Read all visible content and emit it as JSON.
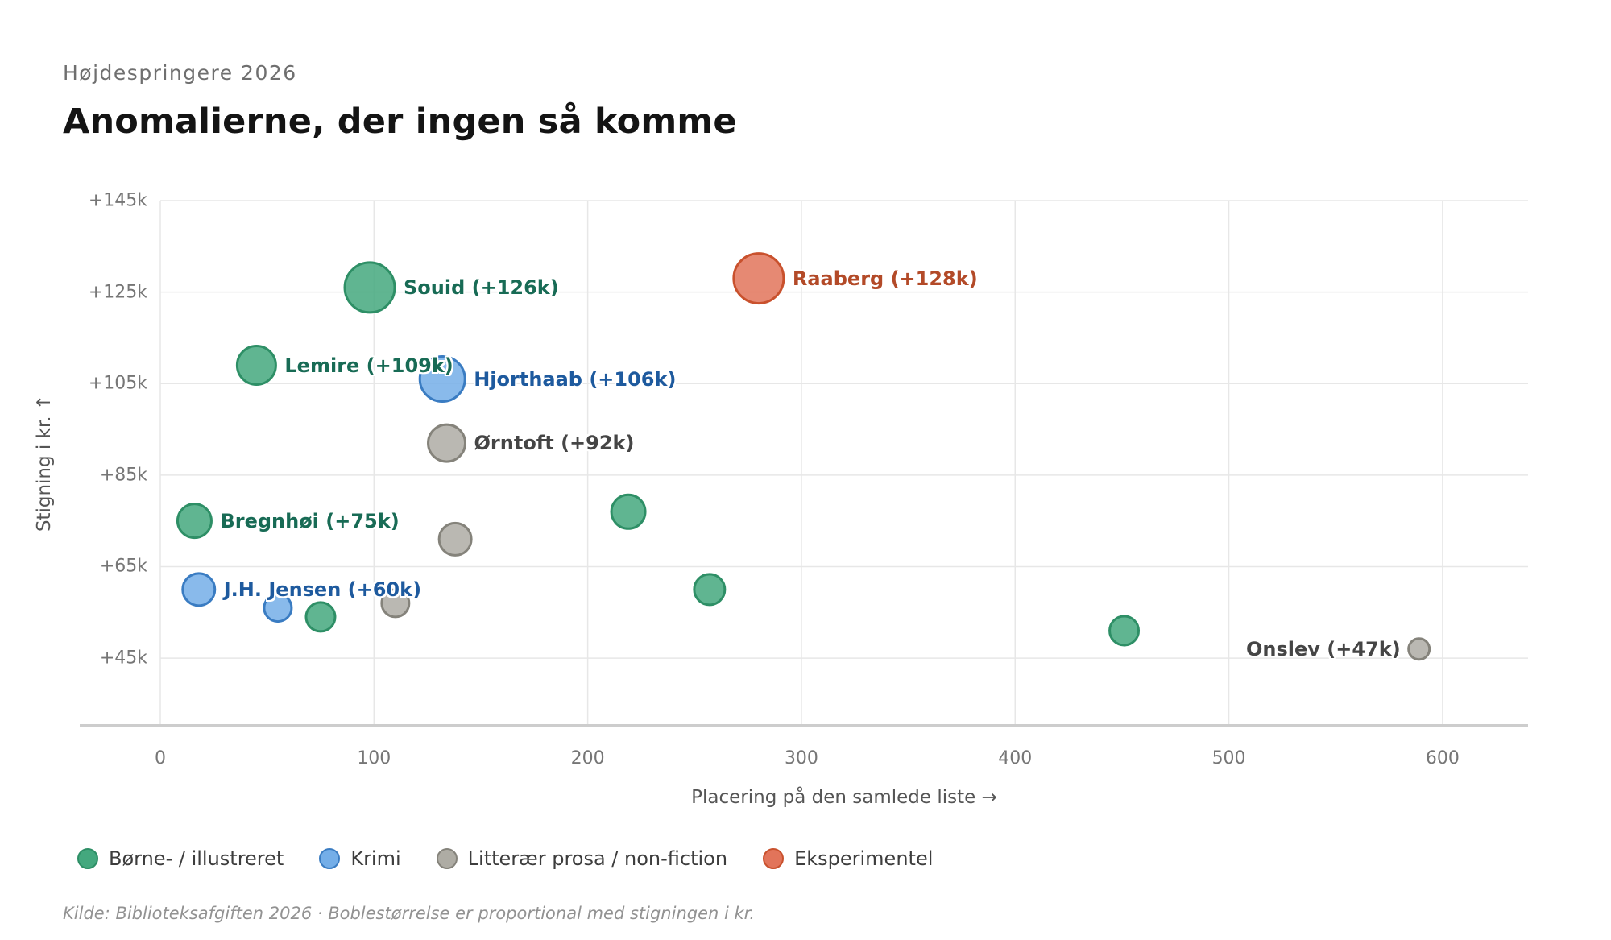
{
  "header": {
    "kicker": "Højdespringere 2026",
    "title": "Anomalierne, der ingen så komme"
  },
  "footer": {
    "source": "Kilde: Biblioteksafgiften 2026 · Boblestørrelse er proportional med stigningen i kr."
  },
  "chart_data": {
    "type": "scatter",
    "title": "Anomalierne, der ingen så komme",
    "subtitle": "Højdespringere 2026",
    "xlabel": "Placering på den samlede liste →",
    "ylabel": "Stigning i kr. ↑",
    "xlim": [
      0,
      640
    ],
    "ylim_k": [
      30.4,
      145
    ],
    "grid": true,
    "x_ticks": [
      0,
      100,
      200,
      300,
      400,
      500,
      600
    ],
    "y_ticks": [
      {
        "value": 45,
        "label": "+45k"
      },
      {
        "value": 65,
        "label": "+65k"
      },
      {
        "value": 85,
        "label": "+85k"
      },
      {
        "value": 105,
        "label": "+105k"
      },
      {
        "value": 125,
        "label": "+125k"
      },
      {
        "value": 145,
        "label": "+145k"
      }
    ],
    "size_note": "bubble size proportional to y value (stigning i kr.)",
    "categories": [
      {
        "id": "borne",
        "label": "Børne- / illustreret",
        "fill": "#44a87e",
        "stroke": "#2e8f66",
        "label_color": "#186b55"
      },
      {
        "id": "krimi",
        "label": "Krimi",
        "fill": "#74aee8",
        "stroke": "#3a7cc2",
        "label_color": "#1e5a9e"
      },
      {
        "id": "prosa",
        "label": "Litterær prosa / non-fiction",
        "fill": "#aeaca4",
        "stroke": "#85837b",
        "label_color": "#454545"
      },
      {
        "id": "eksperimentel",
        "label": "Eksperimentel",
        "fill": "#e2745a",
        "stroke": "#c9512d",
        "label_color": "#b34a28"
      }
    ],
    "points": [
      {
        "name": "Souid",
        "label": "Souid (+126k)",
        "category": "borne",
        "x": 98,
        "y_k": 126,
        "r": 31,
        "label_side": "right"
      },
      {
        "name": "Raaberg",
        "label": "Raaberg (+128k)",
        "category": "eksperimentel",
        "x": 280,
        "y_k": 128,
        "r": 31,
        "label_side": "right"
      },
      {
        "name": "Lemire",
        "label": "Lemire (+109k)",
        "category": "borne",
        "x": 45,
        "y_k": 109,
        "r": 24,
        "label_side": "right"
      },
      {
        "name": "Hjorthaab",
        "label": "Hjorthaab (+106k)",
        "category": "krimi",
        "x": 132,
        "y_k": 106,
        "r": 28,
        "label_side": "right"
      },
      {
        "name": "Ørntoft",
        "label": "Ørntoft (+92k)",
        "category": "prosa",
        "x": 134,
        "y_k": 92,
        "r": 23,
        "label_side": "right"
      },
      {
        "name": "Bregnhøi",
        "label": "Bregnhøi (+75k)",
        "category": "borne",
        "x": 16,
        "y_k": 75,
        "r": 21,
        "label_side": "right"
      },
      {
        "name": "J.H. Jensen",
        "label": "J.H. Jensen (+60k)",
        "category": "krimi",
        "x": 18,
        "y_k": 60,
        "r": 20,
        "label_side": "right"
      },
      {
        "name": "Onslev",
        "label": "Onslev (+47k)",
        "category": "prosa",
        "x": 589,
        "y_k": 47,
        "r": 13,
        "label_side": "left"
      },
      {
        "category": "borne",
        "x": 219,
        "y_k": 77,
        "r": 21
      },
      {
        "category": "prosa",
        "x": 138,
        "y_k": 71,
        "r": 20
      },
      {
        "category": "prosa",
        "x": 110,
        "y_k": 57,
        "r": 17
      },
      {
        "category": "krimi",
        "x": 55,
        "y_k": 56,
        "r": 17
      },
      {
        "category": "borne",
        "x": 75,
        "y_k": 54,
        "r": 18
      },
      {
        "category": "borne",
        "x": 257,
        "y_k": 60,
        "r": 19
      },
      {
        "category": "borne",
        "x": 451,
        "y_k": 51,
        "r": 18
      }
    ],
    "legend_position": "bottom"
  }
}
